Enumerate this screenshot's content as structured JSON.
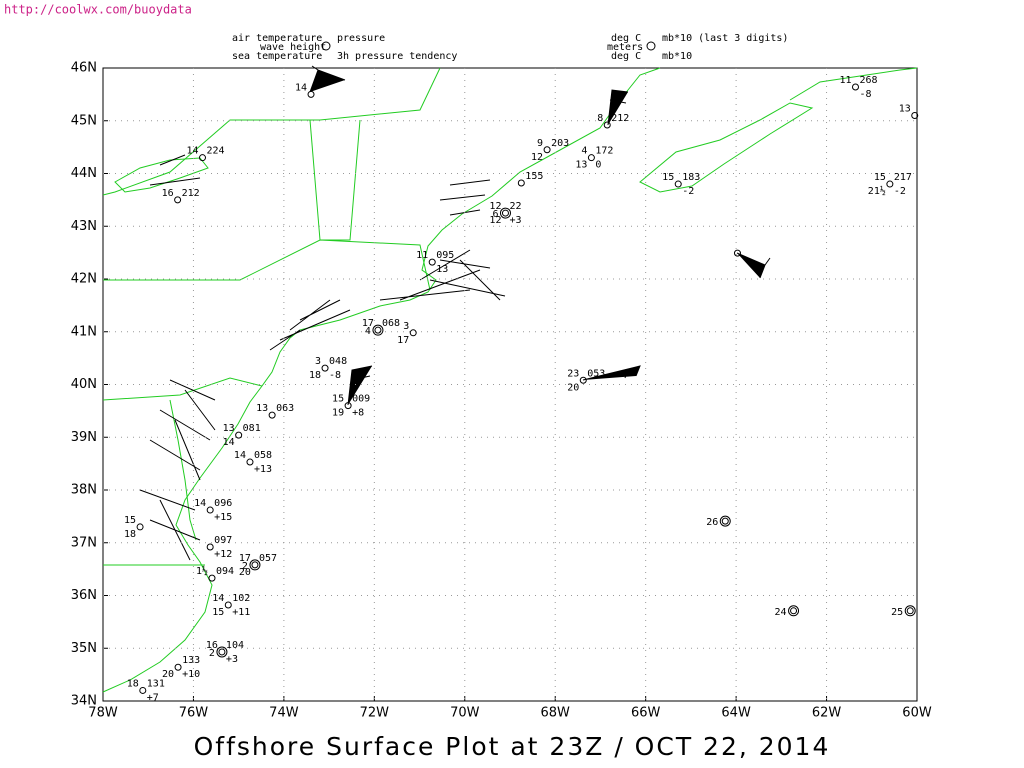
{
  "url": "http://coolwx.com/buoydata",
  "legend": {
    "left": [
      "air temperature",
      "wave height",
      "sea temperature"
    ],
    "right": [
      "pressure",
      "3h pressure tendency"
    ],
    "units_left": [
      "deg C",
      "meters",
      "deg C"
    ],
    "units_right": [
      "mb*10 (last 3 digits)",
      "mb*10"
    ]
  },
  "title": "Offshore Surface Plot at 23Z / OCT 22, 2014",
  "x_ticks": [
    "78W",
    "76W",
    "74W",
    "72W",
    "70W",
    "68W",
    "66W",
    "64W",
    "62W",
    "60W"
  ],
  "y_ticks": [
    "46N",
    "45N",
    "44N",
    "43N",
    "42N",
    "41N",
    "40N",
    "39N",
    "38N",
    "37N",
    "36N",
    "35N",
    "34N"
  ],
  "lon_range": [
    -78,
    -60
  ],
  "lat_range": [
    34,
    46
  ],
  "stations": [
    {
      "lon": -73.4,
      "lat": 45.5,
      "air": "14"
    },
    {
      "lon": -61.36,
      "lat": 45.64,
      "air": "11",
      "pressure": "268",
      "tendency": "-8"
    },
    {
      "lon": -60.05,
      "lat": 45.1,
      "air": "13"
    },
    {
      "lon": -66.85,
      "lat": 44.92,
      "air": "8",
      "pressure": "212"
    },
    {
      "lon": -68.18,
      "lat": 44.45,
      "air": "9",
      "pressure": "203",
      "sea": "12"
    },
    {
      "lon": -67.2,
      "lat": 44.3,
      "air": "4",
      "pressure": "172",
      "sea": "13",
      "tendency": "0"
    },
    {
      "lon": -65.28,
      "lat": 43.8,
      "air": "15",
      "pressure": "183",
      "tendency": "-2"
    },
    {
      "lon": -60.6,
      "lat": 43.8,
      "air": "15",
      "pressure": "217",
      "sea": "21½",
      "tendency": "-2"
    },
    {
      "lon": -68.75,
      "lat": 43.82,
      "pressure": "155"
    },
    {
      "lon": -69.1,
      "lat": 43.25,
      "air": "12",
      "pressure": "22",
      "sea": "12",
      "tendency": "+3",
      "wave": "6"
    },
    {
      "lon": -75.8,
      "lat": 44.3,
      "air": "14",
      "pressure": "224"
    },
    {
      "lon": -76.35,
      "lat": 43.5,
      "air": "16",
      "pressure": "212"
    },
    {
      "lon": -70.72,
      "lat": 42.32,
      "air": "11",
      "pressure": "095",
      "tendency": "13"
    },
    {
      "lon": -71.92,
      "lat": 41.03,
      "air": "17",
      "pressure": "068",
      "wave": "4"
    },
    {
      "lon": -71.14,
      "lat": 40.98,
      "air": "3",
      "sea": "17"
    },
    {
      "lon": -73.09,
      "lat": 40.31,
      "air": "3",
      "pressure": "048",
      "sea": "18",
      "tendency": "-8"
    },
    {
      "lon": -67.38,
      "lat": 40.08,
      "air": "23",
      "pressure": "053",
      "sea": "20"
    },
    {
      "lon": -72.58,
      "lat": 39.6,
      "air": "15",
      "pressure": "009",
      "sea": "19",
      "tendency": "+8"
    },
    {
      "lon": -74.26,
      "lat": 39.42,
      "air": "13",
      "pressure": "063"
    },
    {
      "lon": -75.0,
      "lat": 39.04,
      "air": "13",
      "pressure": "081",
      "sea": "14"
    },
    {
      "lon": -74.75,
      "lat": 38.53,
      "air": "14",
      "pressure": "058",
      "tendency": "+13"
    },
    {
      "lon": -75.63,
      "lat": 37.62,
      "air": "14",
      "pressure": "096",
      "tendency": "+15"
    },
    {
      "lon": -75.63,
      "lat": 36.92,
      "pressure": "097",
      "tendency": "+12"
    },
    {
      "lon": -74.64,
      "lat": 36.58,
      "air": "17",
      "pressure": "057",
      "sea": "20",
      "wave": "2"
    },
    {
      "lon": -75.59,
      "lat": 36.33,
      "air": "1½",
      "pressure": "094"
    },
    {
      "lon": -75.23,
      "lat": 35.82,
      "air": "14",
      "pressure": "102",
      "sea": "15",
      "tendency": "+11"
    },
    {
      "lon": -75.37,
      "lat": 34.93,
      "air": "16",
      "pressure": "104",
      "tendency": "+3",
      "wave": "2"
    },
    {
      "lon": -76.34,
      "lat": 34.64,
      "pressure": "133",
      "sea": "20",
      "tendency": "+10"
    },
    {
      "lon": -77.12,
      "lat": 34.2,
      "air": "18",
      "pressure": "131",
      "tendency": "+7"
    },
    {
      "lon": -77.18,
      "lat": 37.3,
      "air": "15",
      "sea": "18"
    },
    {
      "lon": -64.24,
      "lat": 37.41,
      "wave": "26"
    },
    {
      "lon": -62.73,
      "lat": 35.71,
      "wave": "24"
    },
    {
      "lon": -60.15,
      "lat": 35.71,
      "wave": "25"
    },
    {
      "lon": -63.97,
      "lat": 42.49
    }
  ]
}
